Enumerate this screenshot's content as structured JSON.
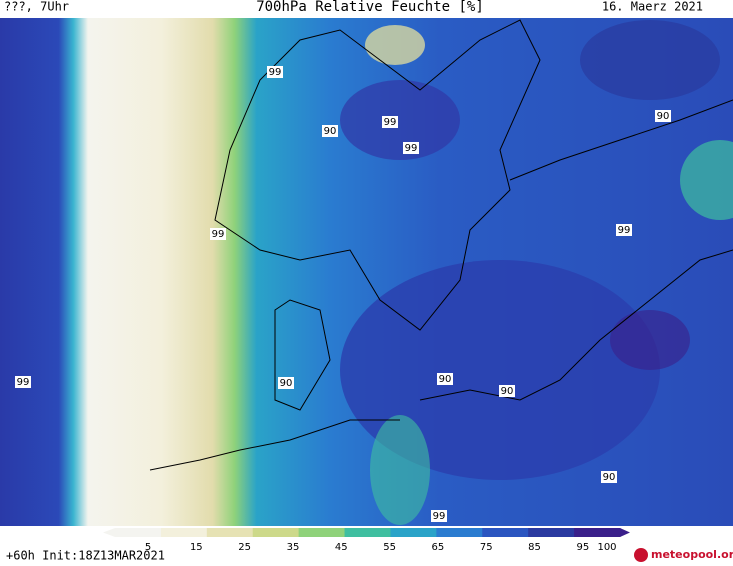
{
  "header": {
    "left": "???, 7Uhr",
    "title": "700hPa Relative Feuchte [%]",
    "date": "16. Maerz 2021"
  },
  "contour_labels": [
    "99",
    "90",
    "99",
    "99",
    "90",
    "99",
    "99",
    "99",
    "90",
    "90",
    "90",
    "90",
    "99"
  ],
  "colorbar": {
    "ticks": [
      5,
      15,
      25,
      35,
      45,
      55,
      65,
      75,
      85,
      95,
      100
    ],
    "colors": [
      "#f4f4f0",
      "#f3f0dc",
      "#e6e2b4",
      "#cdd98a",
      "#8fd27a",
      "#3fbfa0",
      "#2aa3c8",
      "#2a7cd0",
      "#2a55c0",
      "#2a3aa0",
      "#3a1f8a"
    ]
  },
  "footer": {
    "left": "+60h Init:18Z13MAR2021",
    "logo": "meteopool.org"
  }
}
